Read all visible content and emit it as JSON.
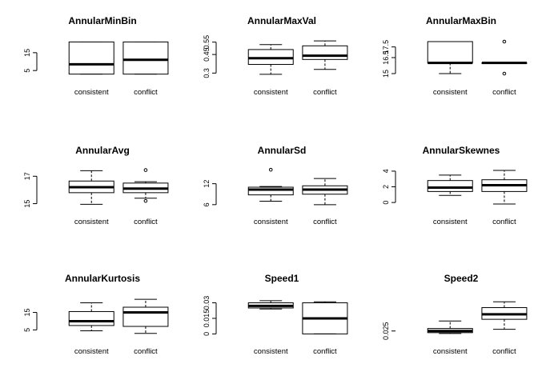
{
  "chart_data": [
    {
      "type": "boxplot",
      "title": "AnnularMinBin",
      "categories": [
        "consistent",
        "conflict"
      ],
      "yticks": [
        5,
        15
      ],
      "ylim": [
        1.5,
        23
      ],
      "boxes": [
        {
          "name": "consistent",
          "whisker_low": 3,
          "q1": 3,
          "median": 8.5,
          "q3": 21,
          "whisker_high": 21,
          "outliers": []
        },
        {
          "name": "conflict",
          "whisker_low": 3,
          "q1": 3,
          "median": 11,
          "q3": 21,
          "whisker_high": 21,
          "outliers": []
        }
      ]
    },
    {
      "type": "boxplot",
      "title": "AnnularMaxVal",
      "categories": [
        "consistent",
        "conflict"
      ],
      "yticks": [
        0.3,
        0.45,
        0.55
      ],
      "ylim": [
        0.27,
        0.58
      ],
      "boxes": [
        {
          "name": "consistent",
          "whisker_low": 0.29,
          "q1": 0.37,
          "median": 0.42,
          "q3": 0.49,
          "whisker_high": 0.53,
          "outliers": []
        },
        {
          "name": "conflict",
          "whisker_low": 0.33,
          "q1": 0.41,
          "median": 0.44,
          "q3": 0.52,
          "whisker_high": 0.56,
          "outliers": []
        }
      ]
    },
    {
      "type": "boxplot",
      "title": "AnnularMaxBin",
      "categories": [
        "consistent",
        "conflict"
      ],
      "yticks": [
        15.0,
        16.5,
        17.5
      ],
      "ylim": [
        14.7,
        18.3
      ],
      "boxes": [
        {
          "name": "consistent",
          "whisker_low": 15,
          "q1": 16,
          "median": 16,
          "q3": 18,
          "whisker_high": 18,
          "outliers": []
        },
        {
          "name": "conflict",
          "whisker_low": 16,
          "q1": 16,
          "median": 16,
          "q3": 16,
          "whisker_high": 16,
          "outliers": [
            15,
            18
          ]
        }
      ]
    },
    {
      "type": "boxplot",
      "title": "AnnularAvg",
      "categories": [
        "consistent",
        "conflict"
      ],
      "yticks": [
        15.0,
        17.0
      ],
      "ylim": [
        14.8,
        17.6
      ],
      "boxes": [
        {
          "name": "consistent",
          "whisker_low": 14.95,
          "q1": 15.8,
          "median": 16.2,
          "q3": 16.65,
          "whisker_high": 17.4,
          "outliers": []
        },
        {
          "name": "conflict",
          "whisker_low": 15.4,
          "q1": 15.8,
          "median": 16.1,
          "q3": 16.5,
          "whisker_high": 16.6,
          "outliers": [
            17.45,
            15.2
          ]
        }
      ]
    },
    {
      "type": "boxplot",
      "title": "AnnularSd",
      "categories": [
        "consistent",
        "conflict"
      ],
      "yticks": [
        6,
        12
      ],
      "ylim": [
        5.5,
        16.5
      ],
      "boxes": [
        {
          "name": "consistent",
          "whisker_low": 7,
          "q1": 8.8,
          "median": 10.3,
          "q3": 11,
          "whisker_high": 11.2,
          "outliers": [
            16
          ]
        },
        {
          "name": "conflict",
          "whisker_low": 6,
          "q1": 9,
          "median": 10.3,
          "q3": 11.4,
          "whisker_high": 13.5,
          "outliers": []
        }
      ]
    },
    {
      "type": "boxplot",
      "title": "AnnularSkewnes",
      "categories": [
        "consistent",
        "conflict"
      ],
      "yticks": [
        0,
        2,
        4
      ],
      "ylim": [
        -0.5,
        4.4
      ],
      "boxes": [
        {
          "name": "consistent",
          "whisker_low": 0.9,
          "q1": 1.4,
          "median": 1.9,
          "q3": 2.8,
          "whisker_high": 3.5,
          "outliers": []
        },
        {
          "name": "conflict",
          "whisker_low": -0.2,
          "q1": 1.4,
          "median": 2.2,
          "q3": 2.9,
          "whisker_high": 4.1,
          "outliers": []
        }
      ]
    },
    {
      "type": "boxplot",
      "title": "AnnularKurtosis",
      "categories": [
        "consistent",
        "conflict"
      ],
      "yticks": [
        5,
        15
      ],
      "ylim": [
        1.5,
        23.5
      ],
      "boxes": [
        {
          "name": "consistent",
          "whisker_low": 4.5,
          "q1": 7.5,
          "median": 10,
          "q3": 15.5,
          "whisker_high": 20.5,
          "outliers": []
        },
        {
          "name": "conflict",
          "whisker_low": 3,
          "q1": 7,
          "median": 15,
          "q3": 18,
          "whisker_high": 22.5,
          "outliers": []
        }
      ]
    },
    {
      "type": "boxplot",
      "title": "Speed1",
      "categories": [
        "consistent",
        "conflict"
      ],
      "yticks": [
        0.0,
        0.015,
        0.03
      ],
      "ylim": [
        -0.002,
        0.035
      ],
      "boxes": [
        {
          "name": "consistent",
          "whisker_low": 0.024,
          "q1": 0.025,
          "median": 0.027,
          "q3": 0.03,
          "whisker_high": 0.032,
          "outliers": []
        },
        {
          "name": "conflict",
          "whisker_low": 0.0,
          "q1": 0.0,
          "median": 0.015,
          "q3": 0.03,
          "whisker_high": 0.031,
          "outliers": []
        }
      ]
    },
    {
      "type": "boxplot",
      "title": "Speed2",
      "categories": [
        "consistent",
        "conflict"
      ],
      "yticks": [
        0.025
      ],
      "ylim": [
        0.019,
        0.065
      ],
      "boxes": [
        {
          "name": "consistent",
          "whisker_low": 0.022,
          "q1": 0.023,
          "median": 0.025,
          "q3": 0.028,
          "whisker_high": 0.037,
          "outliers": []
        },
        {
          "name": "conflict",
          "whisker_low": 0.027,
          "q1": 0.039,
          "median": 0.045,
          "q3": 0.053,
          "whisker_high": 0.06,
          "outliers": []
        }
      ]
    }
  ]
}
